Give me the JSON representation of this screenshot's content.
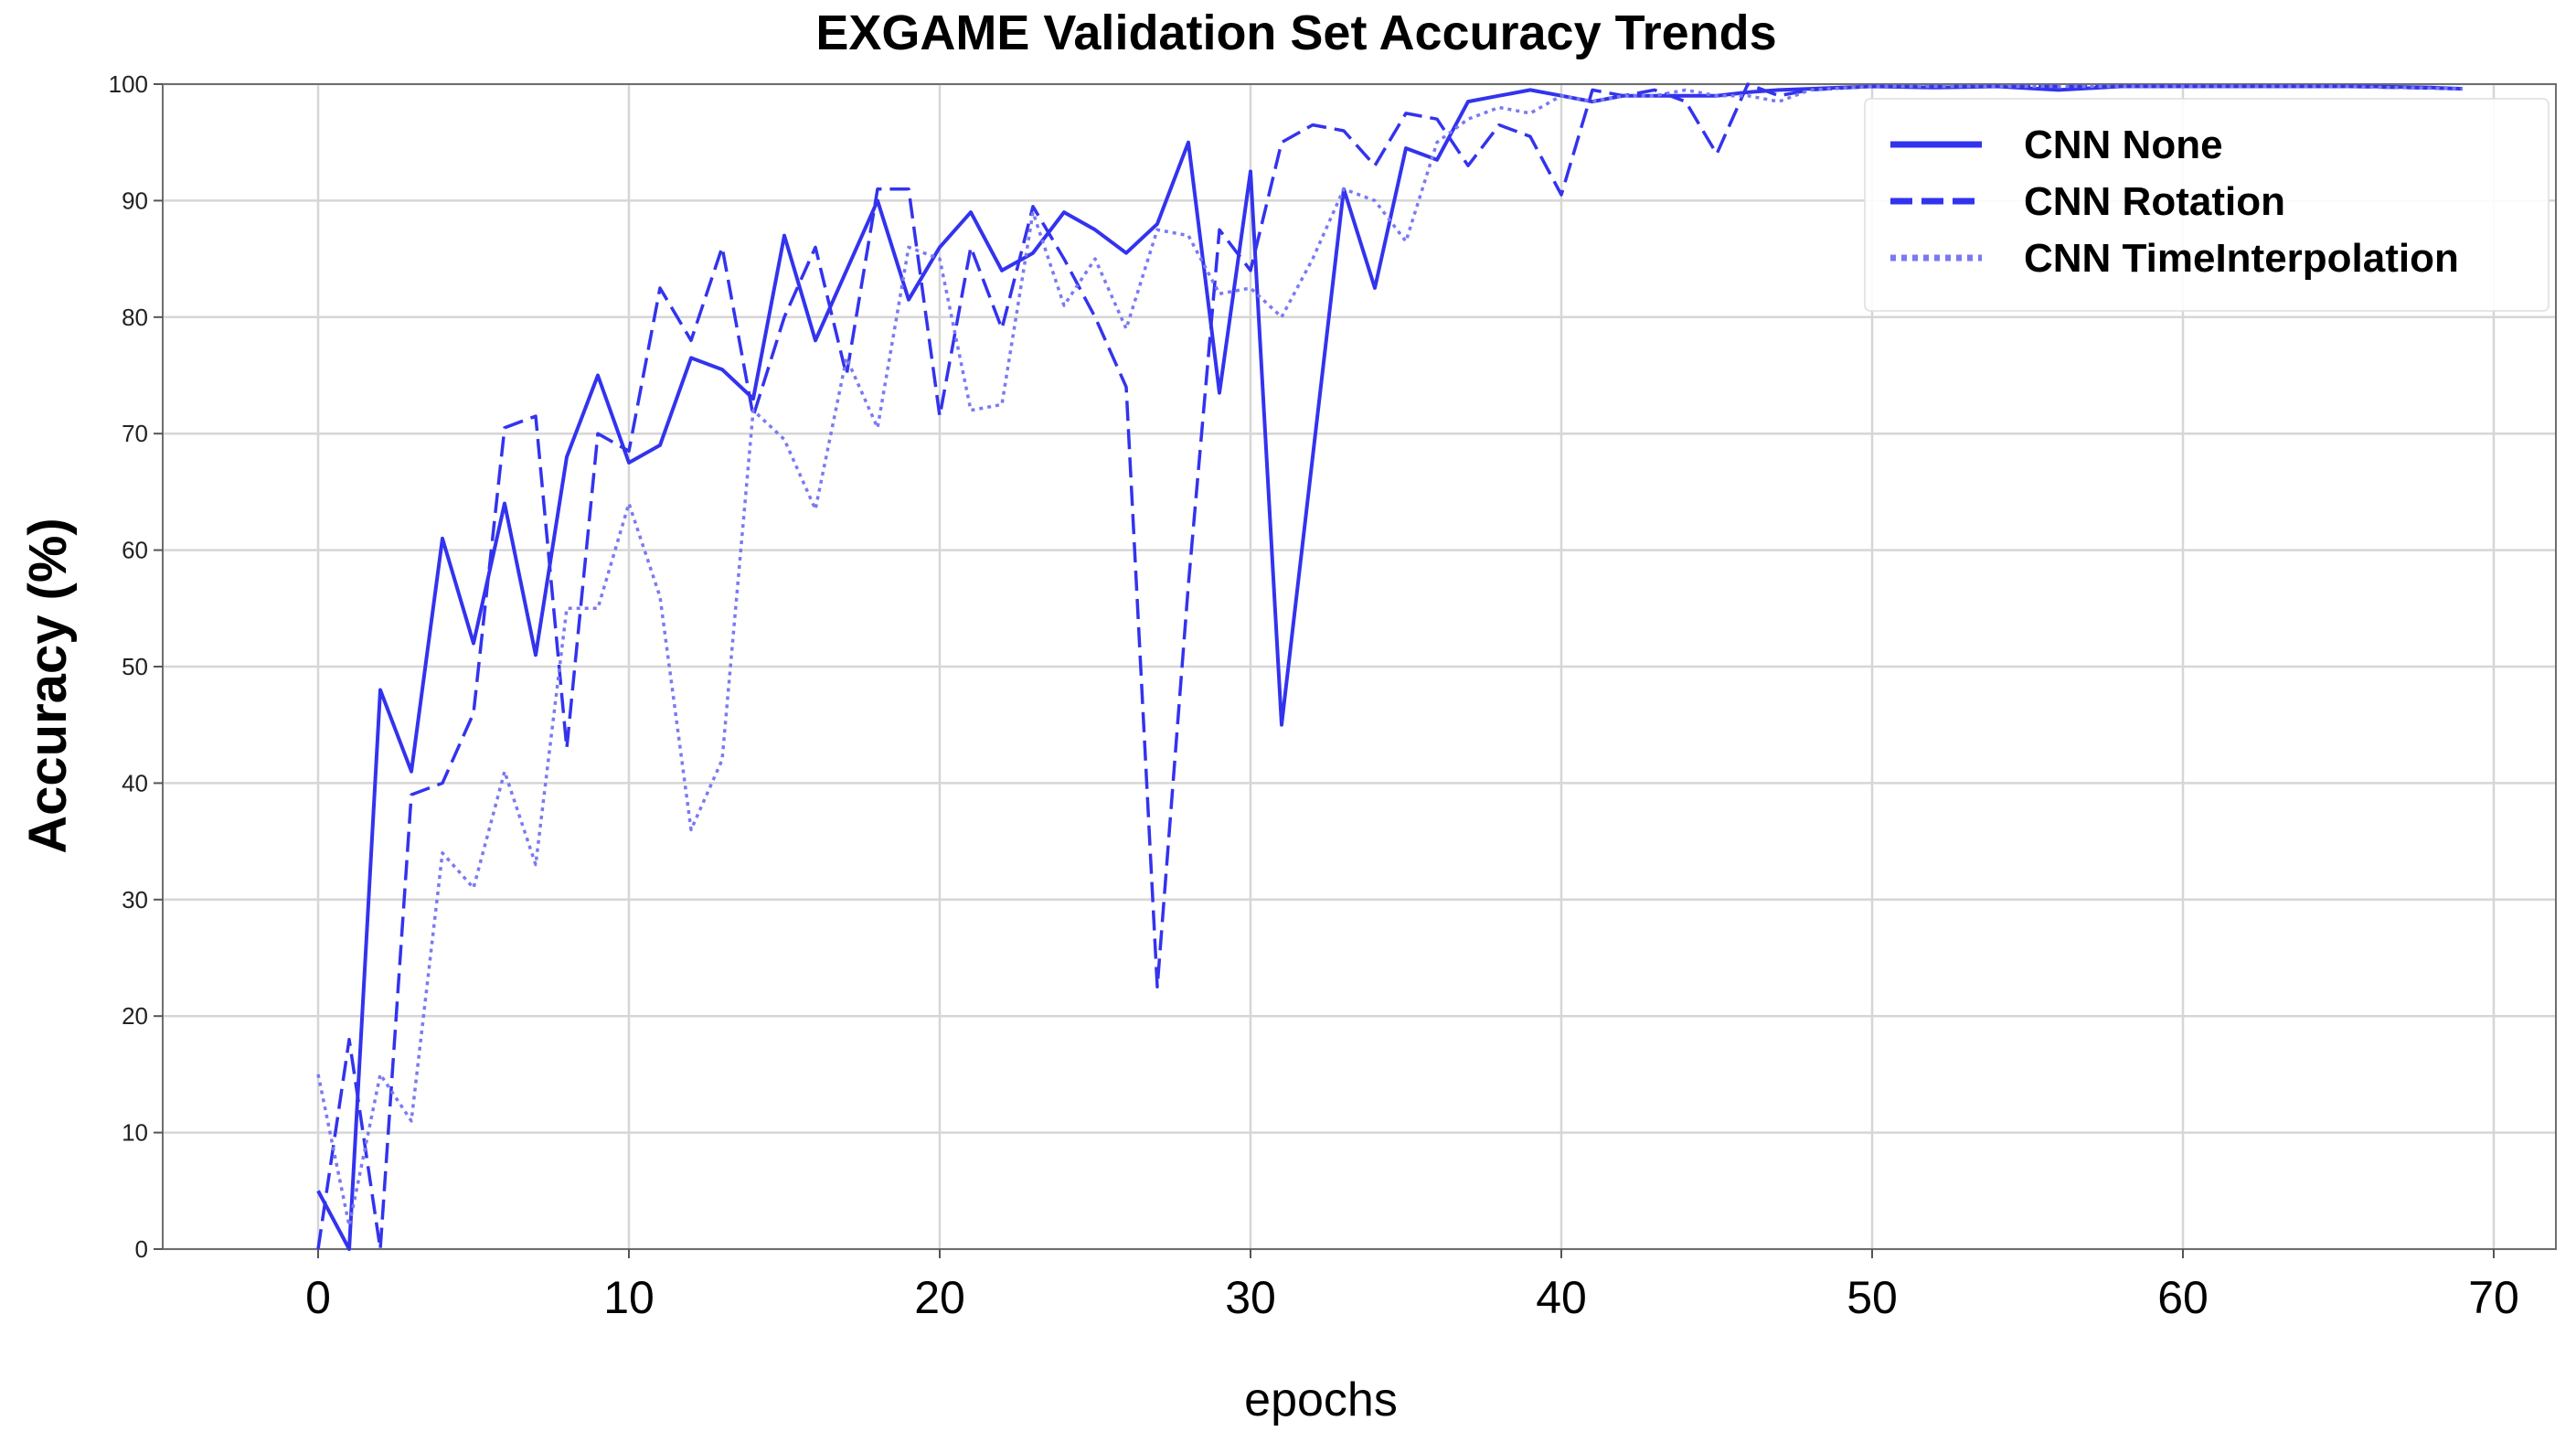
{
  "chart_data": {
    "type": "line",
    "title": "EXGAME Validation Set Accuracy Trends",
    "xlabel": "epochs",
    "ylabel": "Accuracy (%)",
    "xlim": [
      -5,
      72
    ],
    "ylim": [
      0,
      100
    ],
    "xticks": [
      0,
      10,
      20,
      30,
      40,
      50,
      60,
      70
    ],
    "yticks": [
      0,
      10,
      20,
      30,
      40,
      50,
      60,
      70,
      80,
      90,
      100
    ],
    "grid": true,
    "legend_position": "top-right",
    "series": [
      {
        "name": "CNN None",
        "style": "solid",
        "color": "#3333ee",
        "points": [
          [
            0,
            5
          ],
          [
            1,
            0
          ],
          [
            2,
            48
          ],
          [
            3,
            41
          ],
          [
            4,
            61
          ],
          [
            5,
            52
          ],
          [
            6,
            64
          ],
          [
            7,
            51
          ],
          [
            8,
            68
          ],
          [
            9,
            75
          ],
          [
            10,
            67.5
          ],
          [
            11,
            69
          ],
          [
            12,
            76.5
          ],
          [
            13,
            75.5
          ],
          [
            14,
            73
          ],
          [
            15,
            87
          ],
          [
            16,
            78
          ],
          [
            17,
            84
          ],
          [
            18,
            90
          ],
          [
            19,
            81.5
          ],
          [
            20,
            86
          ],
          [
            21,
            89
          ],
          [
            22,
            84
          ],
          [
            23,
            85.5
          ],
          [
            24,
            89
          ],
          [
            25,
            87.5
          ],
          [
            26,
            85.5
          ],
          [
            27,
            88
          ],
          [
            28,
            95
          ],
          [
            29,
            73.5
          ],
          [
            30,
            92.5
          ],
          [
            31,
            45
          ],
          [
            32,
            68
          ],
          [
            33,
            91
          ],
          [
            34,
            82.5
          ],
          [
            35,
            94.5
          ],
          [
            36,
            93.5
          ],
          [
            37,
            98.5
          ],
          [
            38,
            99
          ],
          [
            39,
            99.5
          ],
          [
            40,
            99
          ],
          [
            41,
            98.5
          ],
          [
            42,
            99
          ],
          [
            43,
            99
          ],
          [
            44,
            99
          ],
          [
            45,
            99
          ],
          [
            46,
            99.3
          ],
          [
            47,
            99.5
          ],
          [
            48,
            99.6
          ],
          [
            49,
            99.7
          ],
          [
            50,
            99.8
          ],
          [
            52,
            99.7
          ],
          [
            54,
            99.8
          ],
          [
            56,
            99.5
          ],
          [
            58,
            99.8
          ],
          [
            60,
            99.8
          ],
          [
            62,
            99.8
          ],
          [
            64,
            99.8
          ],
          [
            66,
            99.8
          ],
          [
            68,
            99.7
          ],
          [
            69,
            99.6
          ]
        ]
      },
      {
        "name": "CNN Rotation",
        "style": "dashed",
        "color": "#3333ee",
        "points": [
          [
            0,
            0
          ],
          [
            1,
            18
          ],
          [
            2,
            0
          ],
          [
            3,
            39
          ],
          [
            4,
            40
          ],
          [
            5,
            46
          ],
          [
            6,
            70.5
          ],
          [
            7,
            71.5
          ],
          [
            8,
            43
          ],
          [
            9,
            70
          ],
          [
            10,
            68.5
          ],
          [
            11,
            82.5
          ],
          [
            12,
            78
          ],
          [
            13,
            86
          ],
          [
            14,
            71.5
          ],
          [
            15,
            80
          ],
          [
            16,
            86
          ],
          [
            17,
            75
          ],
          [
            18,
            91
          ],
          [
            19,
            91
          ],
          [
            20,
            71.5
          ],
          [
            21,
            86
          ],
          [
            22,
            79
          ],
          [
            23,
            89.5
          ],
          [
            24,
            85
          ],
          [
            25,
            80
          ],
          [
            26,
            74
          ],
          [
            27,
            22.5
          ],
          [
            28,
            57
          ],
          [
            29,
            87.5
          ],
          [
            30,
            84
          ],
          [
            31,
            95
          ],
          [
            32,
            96.5
          ],
          [
            33,
            96
          ],
          [
            34,
            93
          ],
          [
            35,
            97.5
          ],
          [
            36,
            97
          ],
          [
            37,
            93
          ],
          [
            38,
            96.5
          ],
          [
            39,
            95.5
          ],
          [
            40,
            90.5
          ],
          [
            41,
            99.5
          ],
          [
            42,
            99
          ],
          [
            43,
            99.5
          ],
          [
            44,
            98.5
          ],
          [
            45,
            94
          ],
          [
            46,
            100
          ],
          [
            47,
            99
          ],
          [
            48,
            99.5
          ],
          [
            50,
            99.8
          ],
          [
            55,
            99.8
          ],
          [
            60,
            99.8
          ],
          [
            65,
            99.8
          ],
          [
            69,
            99.6
          ]
        ]
      },
      {
        "name": "CNN TimeInterpolation",
        "style": "dotted",
        "color": "#7a7af2",
        "points": [
          [
            0,
            15
          ],
          [
            1,
            2
          ],
          [
            2,
            15
          ],
          [
            3,
            11
          ],
          [
            4,
            34
          ],
          [
            5,
            31
          ],
          [
            6,
            41
          ],
          [
            7,
            33
          ],
          [
            8,
            55
          ],
          [
            9,
            55
          ],
          [
            10,
            64
          ],
          [
            11,
            56
          ],
          [
            12,
            36
          ],
          [
            13,
            42
          ],
          [
            14,
            72
          ],
          [
            15,
            69.5
          ],
          [
            16,
            63.5
          ],
          [
            17,
            76.5
          ],
          [
            18,
            70.5
          ],
          [
            19,
            86
          ],
          [
            20,
            85
          ],
          [
            21,
            72
          ],
          [
            22,
            72.5
          ],
          [
            23,
            89
          ],
          [
            24,
            81
          ],
          [
            25,
            85
          ],
          [
            26,
            79
          ],
          [
            27,
            87.5
          ],
          [
            28,
            87
          ],
          [
            29,
            82
          ],
          [
            30,
            82.5
          ],
          [
            31,
            80
          ],
          [
            32,
            85
          ],
          [
            33,
            91
          ],
          [
            34,
            90
          ],
          [
            35,
            86.5
          ],
          [
            36,
            95
          ],
          [
            37,
            97
          ],
          [
            38,
            98
          ],
          [
            39,
            97.5
          ],
          [
            40,
            99
          ],
          [
            41,
            98.5
          ],
          [
            42,
            99
          ],
          [
            43,
            99
          ],
          [
            44,
            99.5
          ],
          [
            45,
            99
          ],
          [
            46,
            99
          ],
          [
            47,
            98.5
          ],
          [
            48,
            99.5
          ],
          [
            50,
            99.8
          ],
          [
            55,
            99.8
          ],
          [
            60,
            99.8
          ],
          [
            65,
            99.8
          ],
          [
            69,
            99.6
          ]
        ]
      }
    ]
  }
}
